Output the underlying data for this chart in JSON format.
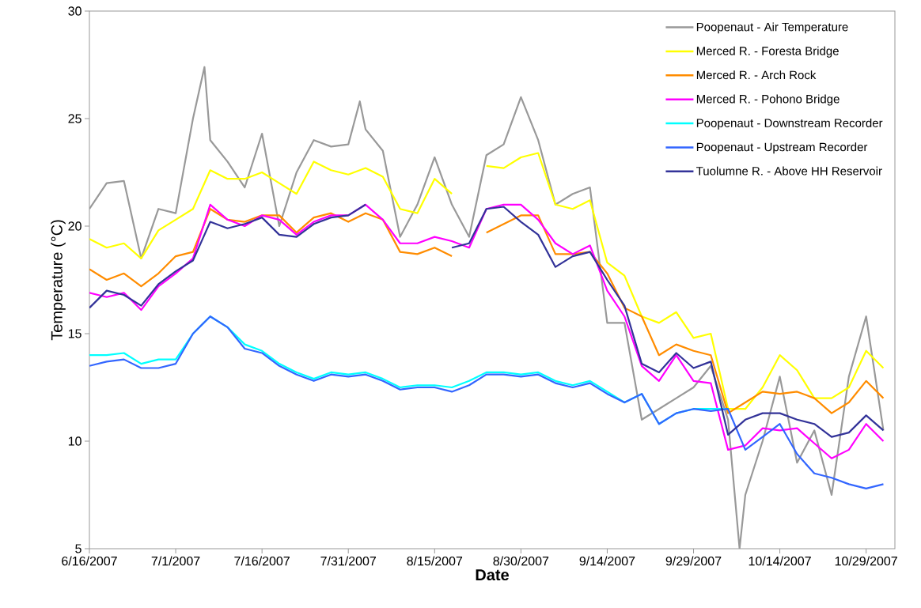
{
  "chart_data": {
    "type": "line",
    "xlabel": "Date",
    "ylabel": "Temperature (°C)",
    "x": [
      "2007-06-16",
      "2007-06-19",
      "2007-06-22",
      "2007-06-25",
      "2007-06-28",
      "2007-07-01",
      "2007-07-04",
      "2007-07-07",
      "2007-07-10",
      "2007-07-13",
      "2007-07-16",
      "2007-07-19",
      "2007-07-22",
      "2007-07-25",
      "2007-07-28",
      "2007-07-31",
      "2007-08-03",
      "2007-08-06",
      "2007-08-09",
      "2007-08-12",
      "2007-08-15",
      "2007-08-18",
      "2007-08-21",
      "2007-08-24",
      "2007-08-27",
      "2007-08-30",
      "2007-09-02",
      "2007-09-05",
      "2007-09-08",
      "2007-09-11",
      "2007-09-14",
      "2007-09-17",
      "2007-09-20",
      "2007-09-23",
      "2007-09-26",
      "2007-09-29",
      "2007-10-02",
      "2007-10-05",
      "2007-10-08",
      "2007-10-11",
      "2007-10-14",
      "2007-10-17",
      "2007-10-20",
      "2007-10-23",
      "2007-10-26",
      "2007-10-29",
      "2007-11-01"
    ],
    "series": [
      {
        "name": "Poopenaut - Air Temperature",
        "color": "#999999",
        "x": [
          "2007-06-16",
          "2007-06-19",
          "2007-06-22",
          "2007-06-25",
          "2007-06-28",
          "2007-07-01",
          "2007-07-04",
          "2007-07-06",
          "2007-07-07",
          "2007-07-10",
          "2007-07-13",
          "2007-07-16",
          "2007-07-19",
          "2007-07-22",
          "2007-07-25",
          "2007-07-28",
          "2007-07-31",
          "2007-08-02",
          "2007-08-03",
          "2007-08-06",
          "2007-08-09",
          "2007-08-12",
          "2007-08-15",
          "2007-08-18",
          "2007-08-21",
          "2007-08-24",
          "2007-08-27",
          "2007-08-30",
          "2007-09-02",
          "2007-09-05",
          "2007-09-08",
          "2007-09-11",
          "2007-09-14",
          "2007-09-17",
          "2007-09-20",
          "2007-09-23",
          "2007-09-26",
          "2007-09-29",
          "2007-10-02",
          "2007-10-05",
          "2007-10-07",
          "2007-10-08",
          "2007-10-11",
          "2007-10-14",
          "2007-10-17",
          "2007-10-20",
          "2007-10-23",
          "2007-10-26",
          "2007-10-29",
          "2007-11-01"
        ],
        "values": [
          20.8,
          22.0,
          22.1,
          18.5,
          20.8,
          20.6,
          25.0,
          27.4,
          24.0,
          23.0,
          21.8,
          24.3,
          20.0,
          22.5,
          24.0,
          23.7,
          23.8,
          25.8,
          24.5,
          23.5,
          19.5,
          21.0,
          23.2,
          21.0,
          19.5,
          23.3,
          23.8,
          26.0,
          24.0,
          21.0,
          21.5,
          21.8,
          15.5,
          15.5,
          11.0,
          11.5,
          12.0,
          12.5,
          13.5,
          11.0,
          5.0,
          7.5,
          10.0,
          13.0,
          9.0,
          10.5,
          7.5,
          13.0,
          15.8,
          10.5
        ]
      },
      {
        "name": "Merced R. - Foresta Bridge",
        "color": "#ffff00",
        "values": [
          19.4,
          19.0,
          19.2,
          18.5,
          19.8,
          20.3,
          20.8,
          22.6,
          22.2,
          22.2,
          22.5,
          22.0,
          21.5,
          23.0,
          22.6,
          22.4,
          22.7,
          22.3,
          20.8,
          20.6,
          22.2,
          21.5,
          null,
          22.8,
          22.7,
          23.2,
          23.4,
          21.0,
          20.8,
          21.2,
          18.3,
          17.7,
          15.8,
          15.5,
          16.0,
          14.8,
          15.0,
          11.5,
          11.5,
          12.5,
          14.0,
          13.3,
          12.0,
          12.0,
          12.5,
          14.2,
          13.4
        ]
      },
      {
        "name": "Merced R. - Arch Rock",
        "color": "#ff8c00",
        "values": [
          18.0,
          17.5,
          17.8,
          17.2,
          17.8,
          18.6,
          18.8,
          20.8,
          20.3,
          20.2,
          20.5,
          20.5,
          19.7,
          20.4,
          20.6,
          20.2,
          20.6,
          20.3,
          18.8,
          18.7,
          19.0,
          18.6,
          null,
          19.7,
          20.1,
          20.5,
          20.5,
          18.7,
          18.7,
          18.8,
          17.8,
          16.2,
          15.8,
          14.0,
          14.5,
          14.2,
          14.0,
          11.3,
          11.8,
          12.3,
          12.2,
          12.3,
          12.0,
          11.3,
          11.8,
          12.8,
          12.0
        ]
      },
      {
        "name": "Merced R. - Pohono Bridge",
        "color": "#ff00ff",
        "values": [
          16.9,
          16.7,
          16.9,
          16.1,
          17.2,
          17.8,
          18.5,
          21.0,
          20.3,
          20.0,
          20.5,
          20.3,
          19.6,
          20.2,
          20.5,
          20.5,
          21.0,
          20.3,
          19.2,
          19.2,
          19.5,
          19.3,
          19.0,
          20.8,
          21.0,
          21.0,
          20.3,
          19.2,
          18.7,
          19.1,
          17.0,
          15.8,
          13.5,
          12.8,
          14.0,
          12.8,
          12.7,
          9.6,
          9.8,
          10.6,
          10.5,
          10.6,
          9.9,
          9.2,
          9.6,
          10.8,
          10.0
        ]
      },
      {
        "name": "Poopenaut - Downstream Recorder",
        "color": "#00ffff",
        "values": [
          14.0,
          14.0,
          14.1,
          13.6,
          13.8,
          13.8,
          15.0,
          15.8,
          15.3,
          14.5,
          14.2,
          13.6,
          13.2,
          12.9,
          13.2,
          13.1,
          13.2,
          12.9,
          12.5,
          12.6,
          12.6,
          12.5,
          12.8,
          13.2,
          13.2,
          13.1,
          13.2,
          12.8,
          12.6,
          12.8,
          12.3,
          11.8,
          12.2,
          10.8,
          11.3,
          11.5,
          11.5,
          11.5,
          null,
          null,
          null,
          null,
          null,
          null,
          null,
          null,
          null
        ]
      },
      {
        "name": "Poopenaut - Upstream Recorder",
        "color": "#3366ff",
        "values": [
          13.5,
          13.7,
          13.8,
          13.4,
          13.4,
          13.6,
          15.0,
          15.8,
          15.3,
          14.3,
          14.1,
          13.5,
          13.1,
          12.8,
          13.1,
          13.0,
          13.1,
          12.8,
          12.4,
          12.5,
          12.5,
          12.3,
          12.6,
          13.1,
          13.1,
          13.0,
          13.1,
          12.7,
          12.5,
          12.7,
          12.2,
          11.8,
          12.2,
          10.8,
          11.3,
          11.5,
          11.4,
          11.5,
          9.6,
          10.2,
          10.8,
          9.4,
          8.5,
          8.3,
          8.0,
          7.8,
          8.0
        ]
      },
      {
        "name": "Tuolumne R. - Above HH Reservoir",
        "color": "#333399",
        "values": [
          16.2,
          17.0,
          16.8,
          16.3,
          17.3,
          17.9,
          18.4,
          20.2,
          19.9,
          20.1,
          20.4,
          19.6,
          19.5,
          20.1,
          20.4,
          20.5,
          21.0,
          null,
          null,
          null,
          null,
          19.0,
          19.2,
          20.8,
          20.9,
          20.2,
          19.6,
          18.1,
          18.6,
          18.8,
          17.5,
          16.3,
          13.6,
          13.2,
          14.1,
          13.4,
          13.7,
          10.3,
          11.0,
          11.3,
          11.3,
          11.0,
          10.8,
          10.2,
          10.4,
          11.2,
          10.5
        ]
      }
    ],
    "xlim": [
      "2007-06-16",
      "2007-11-03"
    ],
    "xticks": [
      {
        "value": "2007-06-16",
        "label": "6/16/2007"
      },
      {
        "value": "2007-07-01",
        "label": "7/1/2007"
      },
      {
        "value": "2007-07-16",
        "label": "7/16/2007"
      },
      {
        "value": "2007-07-31",
        "label": "7/31/2007"
      },
      {
        "value": "2007-08-15",
        "label": "8/15/2007"
      },
      {
        "value": "2007-08-30",
        "label": "8/30/2007"
      },
      {
        "value": "2007-09-14",
        "label": "9/14/2007"
      },
      {
        "value": "2007-09-29",
        "label": "9/29/2007"
      },
      {
        "value": "2007-10-14",
        "label": "10/14/2007"
      },
      {
        "value": "2007-10-29",
        "label": "10/29/2007"
      }
    ],
    "ylim": [
      5,
      30
    ],
    "yticks": [
      5,
      10,
      15,
      20,
      25,
      30
    ],
    "grid": false,
    "legend": "top right",
    "marker": "none",
    "line_style": "solid"
  }
}
